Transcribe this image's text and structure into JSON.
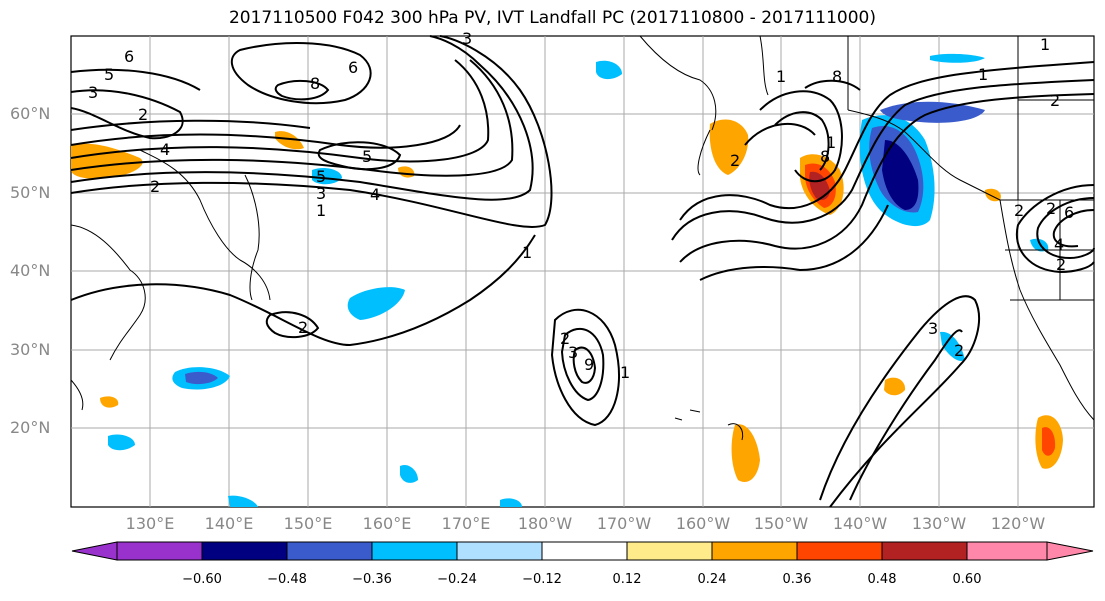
{
  "title": "2017110500 F042 300 hPa PV, IVT Landfall PC (2017110800 - 2017111000)",
  "lat_labels": [
    "60°N",
    "50°N",
    "40°N",
    "30°N",
    "20°N"
  ],
  "lon_labels": [
    "130°E",
    "140°E",
    "150°E",
    "160°E",
    "170°E",
    "180°W",
    "170°W",
    "160°W",
    "150°W",
    "140°W",
    "130°W",
    "120°W"
  ],
  "colorbar": {
    "colors": [
      "#9932cc",
      "#000080",
      "#3a5bcc",
      "#00bfff",
      "#b0e0ff",
      "#ffffff",
      "#ffeb8a",
      "#ffa500",
      "#ff4500",
      "#b22222",
      "#ff88aa"
    ],
    "labels": [
      "−0.60",
      "−0.48",
      "−0.36",
      "−0.24",
      "−0.12",
      "0.12",
      "0.24",
      "0.36",
      "0.48",
      "0.60"
    ]
  },
  "contour_labels": [
    "6",
    "5",
    "3",
    "2",
    "4",
    "2",
    "8",
    "6",
    "5",
    "5",
    "4",
    "3",
    "1",
    "1",
    "2",
    "1",
    "2",
    "3",
    "9",
    "1",
    "8",
    "1",
    "2",
    "8",
    "2",
    "2",
    "6",
    "4",
    "2",
    "3",
    "1",
    "2",
    "3",
    "1",
    "2"
  ]
}
